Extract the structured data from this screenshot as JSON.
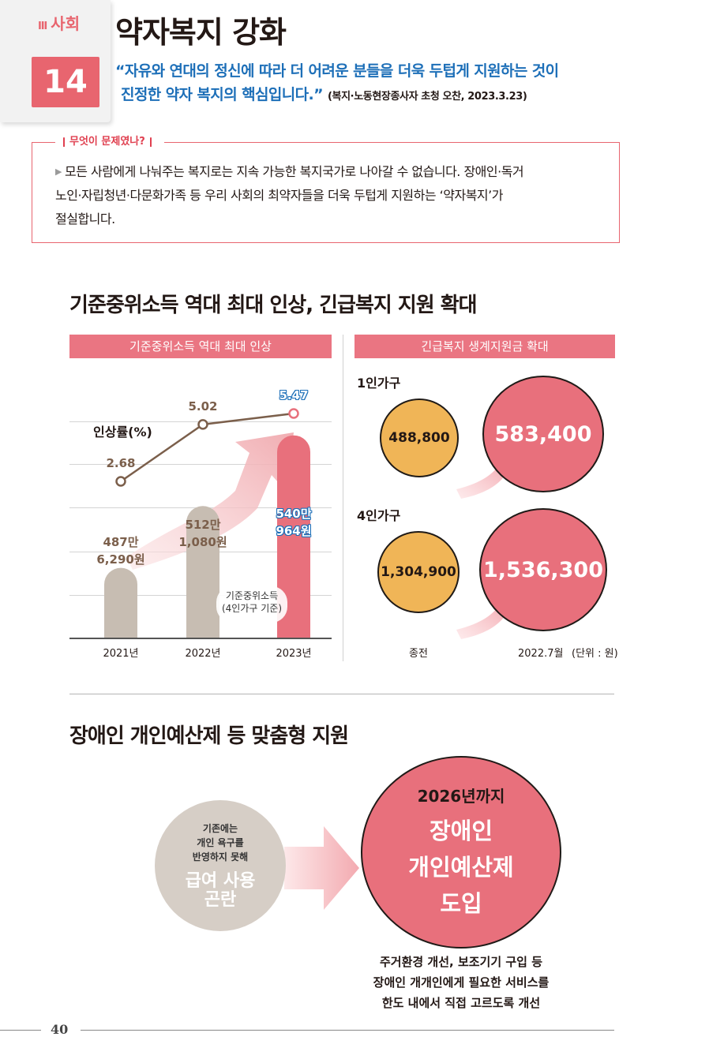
{
  "header": {
    "section_roman": "Ⅲ",
    "section_name": "사회",
    "number": "14",
    "title": "약자복지 강화",
    "quote_line1": "“자유와 연대의 정신에 따라 더 어려운 분들을 더욱 두텁게 지원하는 것이",
    "quote_line2": "진정한 약자 복지의 핵심입니다.”",
    "quote_source": "(복지·노동현장종사자 초청 오찬, 2023.3.23)"
  },
  "problem": {
    "label": "무엇이 문제였나?",
    "text_line1": "모든 사람에게 나눠주는 복지로는 지속 가능한 복지국가로 나아갈 수 없습니다. 장애인·독거",
    "text_line2": "노인·자립청년·다문화가족 등 우리 사회의 최약자들을 더욱 두텁게 지원하는 ‘약자복지’가",
    "text_line3": "절실합니다."
  },
  "section1": {
    "title": "기준중위소득 역대 최대 인상, 긴급복지 지원 확대"
  },
  "chart_data": [
    {
      "type": "bar",
      "title": "기준중위소득 역대 최대 인상",
      "categories": [
        "2021년",
        "2022년",
        "2023년"
      ],
      "series": [
        {
          "name": "기준중위소득 (4인가구 기준)",
          "values": [
            4876290,
            5121080,
            5400964
          ],
          "labels": [
            [
              "487만",
              "6,290원"
            ],
            [
              "512만",
              "1,080원"
            ],
            [
              "540만",
              "964원"
            ]
          ]
        }
      ],
      "line_series": {
        "name": "인상률(%)",
        "values": [
          2.68,
          5.02,
          5.47
        ],
        "labels": [
          "2.68",
          "5.02",
          "5.47"
        ]
      },
      "bar_legend_line1": "기준중위소득",
      "bar_legend_line2": "(4인가구 기준)"
    },
    {
      "type": "bubble",
      "title": "긴급복지 생계지원금 확대",
      "groups": [
        {
          "name": "1인가구",
          "before": "488,800",
          "after": "583,400"
        },
        {
          "name": "4인가구",
          "before": "1,304,900",
          "after": "1,536,300"
        }
      ],
      "x_labels": [
        "종전",
        "2022.7월"
      ],
      "unit": "(단위 : 원)"
    }
  ],
  "section2": {
    "title": "장애인 개인예산제 등 맞춤형 지원",
    "left_small_line1": "기존에는",
    "left_small_line2": "개인 욕구를",
    "left_small_line3": "반영하지 못해",
    "left_big_line1": "급여 사용",
    "left_big_line2": "곤란",
    "right_year": "2026년까지",
    "right_big_line1": "장애인",
    "right_big_line2": "개인예산제",
    "right_big_line3": "도입",
    "desc_line1": "주거환경 개선, 보조기기 구입 등",
    "desc_line2": "장애인 개개인에게 필요한 서비스를",
    "desc_line3": "한도 내에서 직접 고르도록 개선"
  },
  "footer": {
    "page_number": "40"
  },
  "colors": {
    "accent": "#e8656f",
    "blue": "#1d6fb8",
    "bar": "#c7bdb2",
    "orange": "#f0b557",
    "line": "#7b5f4b"
  }
}
